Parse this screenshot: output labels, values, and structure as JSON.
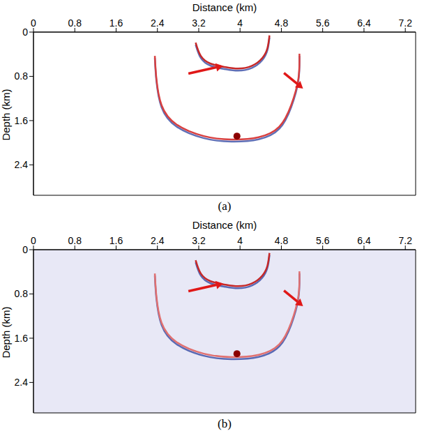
{
  "chart_data": [
    {
      "type": "image",
      "x_label": "Distance (km)",
      "y_label": "Depth (km)",
      "panel_label": "(a)",
      "background": "#ffffff",
      "xlim": [
        0,
        7.4
      ],
      "ylim": [
        0,
        2.95
      ],
      "xticks": [
        0,
        0.8,
        1.6,
        2.4,
        3.2,
        4.0,
        4.8,
        5.6,
        6.4,
        7.2
      ],
      "yticks": [
        0,
        0.8,
        1.6,
        2.4
      ],
      "events": [
        {
          "color": "#c62828",
          "x": [
            3.14,
            3.24,
            3.43,
            3.7,
            3.96,
            4.23,
            4.43,
            4.53,
            4.57
          ],
          "y": [
            0.19,
            0.43,
            0.57,
            0.63,
            0.66,
            0.61,
            0.47,
            0.29,
            0.06
          ]
        },
        {
          "color": "#d84040",
          "x": [
            2.35,
            2.38,
            2.48,
            2.77,
            3.3,
            3.83,
            4.36,
            4.76,
            4.99,
            5.13,
            5.15
          ],
          "y": [
            0.43,
            0.84,
            1.32,
            1.67,
            1.88,
            1.94,
            1.9,
            1.71,
            1.32,
            0.84,
            0.39
          ]
        }
      ],
      "bright_spot": {
        "x": 3.94,
        "y": 1.88,
        "color": "#8b0000"
      },
      "annotations": [
        {
          "x": 3.67,
          "y": 0.61,
          "from": [
            3.0,
            0.75
          ],
          "color": "#e01818"
        },
        {
          "x": 5.22,
          "y": 1.02,
          "from": [
            4.85,
            0.74
          ],
          "color": "#e01818"
        }
      ]
    },
    {
      "type": "image",
      "x_label": "Distance (km)",
      "y_label": "Depth (km)",
      "panel_label": "(b)",
      "background": "#e8e8f6",
      "xlim": [
        0,
        7.4
      ],
      "ylim": [
        0,
        2.95
      ],
      "xticks": [
        0,
        0.8,
        1.6,
        2.4,
        3.2,
        4.0,
        4.8,
        5.6,
        6.4,
        7.2
      ],
      "yticks": [
        0,
        0.8,
        1.6,
        2.4
      ],
      "events": [
        {
          "color": "#c62828",
          "x": [
            3.14,
            3.24,
            3.43,
            3.7,
            3.96,
            4.23,
            4.43,
            4.53,
            4.57
          ],
          "y": [
            0.19,
            0.43,
            0.57,
            0.63,
            0.66,
            0.61,
            0.47,
            0.29,
            0.06
          ]
        },
        {
          "color": "#e07070",
          "x": [
            2.35,
            2.38,
            2.48,
            2.77,
            3.3,
            3.83,
            4.36,
            4.76,
            4.99,
            5.13,
            5.15
          ],
          "y": [
            0.43,
            0.84,
            1.32,
            1.67,
            1.88,
            1.94,
            1.9,
            1.71,
            1.32,
            0.84,
            0.39
          ]
        }
      ],
      "bright_spot": {
        "x": 3.94,
        "y": 1.88,
        "color": "#8b0000"
      },
      "annotations": [
        {
          "x": 3.67,
          "y": 0.61,
          "from": [
            3.0,
            0.75
          ],
          "color": "#e01818"
        },
        {
          "x": 5.22,
          "y": 1.02,
          "from": [
            4.85,
            0.74
          ],
          "color": "#e01818"
        }
      ]
    }
  ]
}
